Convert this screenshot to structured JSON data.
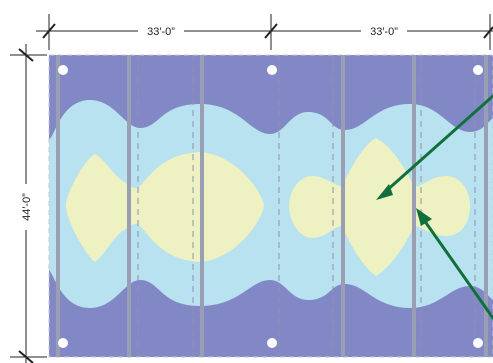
{
  "dimensions": {
    "bay_width_left": "33′-0”",
    "bay_width_right": "33′-0”",
    "depth": "44′-0”"
  },
  "colors": {
    "zone_outer": "#8288c6",
    "zone_middle": "#b8e2ef",
    "zone_inner": "#eef1c1",
    "beam": "#9a9eb3",
    "column_dot": "#ffffff",
    "arrow": "#10703c",
    "dimension_line": "#222222"
  }
}
